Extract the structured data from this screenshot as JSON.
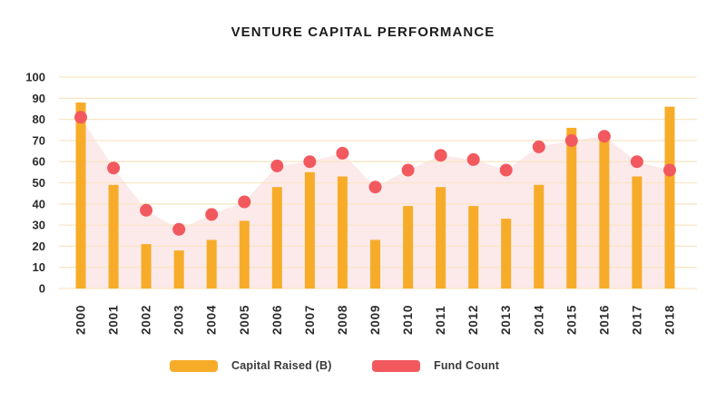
{
  "chart_data": {
    "type": "bar",
    "subtype": "combo-bar-scatter-with-area",
    "title": "VENTURE CAPITAL PERFORMANCE",
    "categories": [
      "2000",
      "2001",
      "2002",
      "2003",
      "2004",
      "2005",
      "2006",
      "2007",
      "2008",
      "2009",
      "2010",
      "2011",
      "2012",
      "2013",
      "2014",
      "2015",
      "2016",
      "2017",
      "2018"
    ],
    "series": [
      {
        "name": "Capital Raised (B)",
        "type": "bar",
        "color": "#F7AC29",
        "values": [
          88,
          49,
          21,
          18,
          23,
          32,
          48,
          55,
          53,
          23,
          39,
          48,
          39,
          33,
          49,
          76,
          72,
          53,
          86
        ]
      },
      {
        "name": "Fund Count",
        "type": "scatter-area",
        "color": "#F2595F",
        "area_color": "#FCE9EA",
        "values": [
          81,
          57,
          37,
          28,
          35,
          41,
          58,
          60,
          64,
          48,
          56,
          63,
          61,
          56,
          67,
          70,
          72,
          60,
          56
        ]
      }
    ],
    "ylim": [
      0,
      100
    ],
    "yticks": [
      0,
      10,
      20,
      30,
      40,
      50,
      60,
      70,
      80,
      90,
      100
    ],
    "grid": "horizontal",
    "gridline_color": "#FAE6C4",
    "axis_text_color": "#2b2b2b",
    "legend_position": "bottom",
    "background": "#FFFFFF"
  }
}
